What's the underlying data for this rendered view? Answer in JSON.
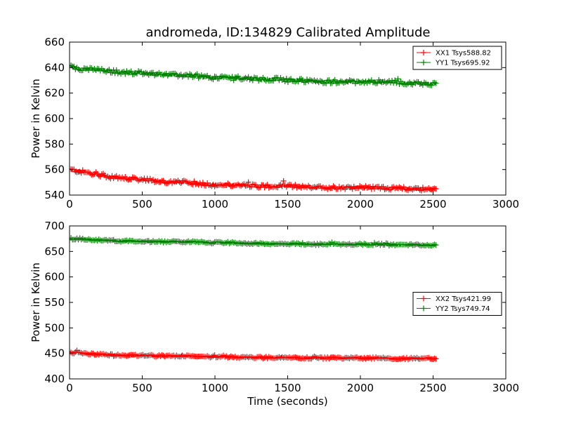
{
  "figure_title": "andromeda, ID:134829 Calibrated Amplitude",
  "chart_data": [
    {
      "type": "line",
      "marker": "+",
      "title": "andromeda, ID:134829 Calibrated Amplitude",
      "xlabel": "",
      "ylabel": "Power in Kelvin",
      "xlim": [
        0,
        3000
      ],
      "ylim": [
        540,
        660
      ],
      "xticks": [
        "0",
        "500",
        "1000",
        "1500",
        "2000",
        "2500",
        "3000"
      ],
      "yticks": [
        "540",
        "560",
        "580",
        "600",
        "620",
        "640",
        "660"
      ],
      "grid": false,
      "legend": "top-right",
      "series": [
        {
          "name": "XX1 Tsys588.82",
          "color": "#ff0000",
          "x": [
            0,
            100,
            200,
            300,
            400,
            500,
            600,
            700,
            800,
            900,
            1000,
            1100,
            1200,
            1300,
            1400,
            1500,
            1600,
            1700,
            1800,
            1900,
            2000,
            2100,
            2200,
            2300,
            2400,
            2500,
            2520
          ],
          "y": [
            560,
            558,
            556,
            554,
            553,
            552,
            551,
            550,
            550,
            549,
            548,
            548,
            548,
            547,
            547,
            547,
            547,
            546,
            546,
            546,
            546,
            546,
            545,
            545,
            545,
            544,
            546
          ]
        },
        {
          "name": "YY1 Tsys695.92",
          "color": "#008000",
          "x": [
            0,
            100,
            200,
            300,
            400,
            500,
            600,
            700,
            800,
            900,
            1000,
            1100,
            1200,
            1300,
            1400,
            1500,
            1600,
            1700,
            1800,
            1900,
            2000,
            2100,
            2200,
            2300,
            2400,
            2500,
            2520
          ],
          "y": [
            640,
            639,
            638,
            637,
            636,
            636,
            635,
            634,
            634,
            633,
            632,
            632,
            632,
            631,
            631,
            630,
            630,
            629,
            629,
            629,
            629,
            629,
            629,
            628,
            628,
            627,
            628
          ]
        }
      ]
    },
    {
      "type": "line",
      "marker": "+",
      "title": "",
      "xlabel": "Time (seconds)",
      "ylabel": "Power in Kelvin",
      "xlim": [
        0,
        3000
      ],
      "ylim": [
        400,
        700
      ],
      "xticks": [
        "0",
        "500",
        "1000",
        "1500",
        "2000",
        "2500",
        "3000"
      ],
      "yticks": [
        "400",
        "450",
        "500",
        "550",
        "600",
        "650",
        "700"
      ],
      "grid": false,
      "legend": "center-right",
      "series": [
        {
          "name": "XX2 Tsys421.99",
          "color": "#ff0000",
          "x": [
            0,
            100,
            200,
            300,
            400,
            500,
            600,
            700,
            800,
            900,
            1000,
            1100,
            1200,
            1300,
            1400,
            1500,
            1600,
            1700,
            1800,
            1900,
            2000,
            2100,
            2200,
            2300,
            2400,
            2500,
            2520
          ],
          "y": [
            452,
            450,
            448,
            447,
            446,
            446,
            445,
            445,
            445,
            444,
            443,
            443,
            442,
            442,
            442,
            441,
            441,
            441,
            441,
            441,
            441,
            441,
            440,
            440,
            440,
            440,
            441
          ]
        },
        {
          "name": "YY2 Tsys749.74",
          "color": "#008000",
          "x": [
            0,
            100,
            200,
            300,
            400,
            500,
            600,
            700,
            800,
            900,
            1000,
            1100,
            1200,
            1300,
            1400,
            1500,
            1600,
            1700,
            1800,
            1900,
            2000,
            2100,
            2200,
            2300,
            2400,
            2500,
            2520
          ],
          "y": [
            675,
            674,
            672,
            671,
            670,
            670,
            669,
            669,
            669,
            668,
            667,
            667,
            666,
            666,
            665,
            665,
            665,
            664,
            664,
            664,
            664,
            664,
            663,
            663,
            663,
            662,
            663
          ]
        }
      ]
    }
  ]
}
